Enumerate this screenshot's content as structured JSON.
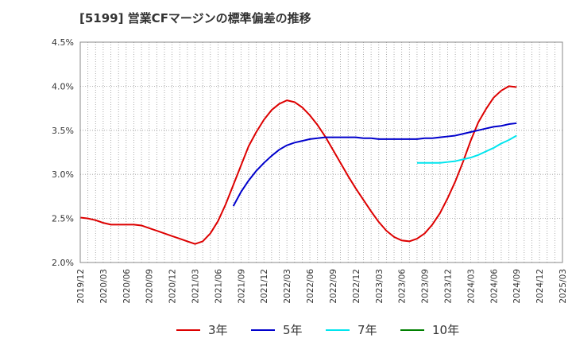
{
  "title": "[5199]  営業CFマージンの標準偏差の推移",
  "chart_data": {
    "type": "line",
    "title": "[5199]  営業CFマージンの標準偏差の推移",
    "xlabel": "",
    "ylabel": "",
    "ylim": [
      2.0,
      4.5
    ],
    "y_ticks": [
      "2.0%",
      "2.5%",
      "3.0%",
      "3.5%",
      "4.0%",
      "4.5%"
    ],
    "y_tick_values": [
      2.0,
      2.5,
      3.0,
      3.5,
      4.0,
      4.5
    ],
    "x_ticks": [
      "2019/12",
      "2020/03",
      "2020/06",
      "2020/09",
      "2020/12",
      "2021/03",
      "2021/06",
      "2021/09",
      "2021/12",
      "2022/03",
      "2022/06",
      "2022/09",
      "2022/12",
      "2023/03",
      "2023/06",
      "2023/09",
      "2023/12",
      "2024/03",
      "2024/06",
      "2024/09",
      "2024/12",
      "2025/03"
    ],
    "grid": true,
    "legend_position": "bottom",
    "series": [
      {
        "name": "3年",
        "color": "#dd0000",
        "points": [
          [
            "2019/12",
            2.51
          ],
          [
            "2020/01",
            2.5
          ],
          [
            "2020/02",
            2.48
          ],
          [
            "2020/03",
            2.45
          ],
          [
            "2020/04",
            2.43
          ],
          [
            "2020/05",
            2.43
          ],
          [
            "2020/06",
            2.43
          ],
          [
            "2020/07",
            2.43
          ],
          [
            "2020/08",
            2.42
          ],
          [
            "2020/09",
            2.39
          ],
          [
            "2020/10",
            2.36
          ],
          [
            "2020/11",
            2.33
          ],
          [
            "2020/12",
            2.3
          ],
          [
            "2021/01",
            2.27
          ],
          [
            "2021/02",
            2.24
          ],
          [
            "2021/03",
            2.21
          ],
          [
            "2021/04",
            2.24
          ],
          [
            "2021/05",
            2.33
          ],
          [
            "2021/06",
            2.47
          ],
          [
            "2021/07",
            2.66
          ],
          [
            "2021/08",
            2.88
          ],
          [
            "2021/09",
            3.1
          ],
          [
            "2021/10",
            3.32
          ],
          [
            "2021/11",
            3.48
          ],
          [
            "2021/12",
            3.62
          ],
          [
            "2022/01",
            3.73
          ],
          [
            "2022/02",
            3.8
          ],
          [
            "2022/03",
            3.84
          ],
          [
            "2022/04",
            3.82
          ],
          [
            "2022/05",
            3.76
          ],
          [
            "2022/06",
            3.67
          ],
          [
            "2022/07",
            3.56
          ],
          [
            "2022/08",
            3.43
          ],
          [
            "2022/09",
            3.28
          ],
          [
            "2022/10",
            3.13
          ],
          [
            "2022/11",
            2.98
          ],
          [
            "2022/12",
            2.84
          ],
          [
            "2023/01",
            2.71
          ],
          [
            "2023/02",
            2.58
          ],
          [
            "2023/03",
            2.46
          ],
          [
            "2023/04",
            2.36
          ],
          [
            "2023/05",
            2.29
          ],
          [
            "2023/06",
            2.25
          ],
          [
            "2023/07",
            2.24
          ],
          [
            "2023/08",
            2.27
          ],
          [
            "2023/09",
            2.33
          ],
          [
            "2023/10",
            2.43
          ],
          [
            "2023/11",
            2.56
          ],
          [
            "2023/12",
            2.73
          ],
          [
            "2024/01",
            2.92
          ],
          [
            "2024/02",
            3.14
          ],
          [
            "2024/03",
            3.38
          ],
          [
            "2024/04",
            3.59
          ],
          [
            "2024/05",
            3.74
          ],
          [
            "2024/06",
            3.87
          ],
          [
            "2024/07",
            3.95
          ],
          [
            "2024/08",
            4.0
          ],
          [
            "2024/09",
            3.99
          ]
        ]
      },
      {
        "name": "5年",
        "color": "#0000cc",
        "points": [
          [
            "2021/08",
            2.64
          ],
          [
            "2021/09",
            2.8
          ],
          [
            "2021/10",
            2.93
          ],
          [
            "2021/11",
            3.04
          ],
          [
            "2021/12",
            3.13
          ],
          [
            "2022/01",
            3.21
          ],
          [
            "2022/02",
            3.28
          ],
          [
            "2022/03",
            3.33
          ],
          [
            "2022/04",
            3.36
          ],
          [
            "2022/05",
            3.38
          ],
          [
            "2022/06",
            3.4
          ],
          [
            "2022/07",
            3.41
          ],
          [
            "2022/08",
            3.42
          ],
          [
            "2022/09",
            3.42
          ],
          [
            "2022/10",
            3.42
          ],
          [
            "2022/11",
            3.42
          ],
          [
            "2022/12",
            3.42
          ],
          [
            "2023/01",
            3.41
          ],
          [
            "2023/02",
            3.41
          ],
          [
            "2023/03",
            3.4
          ],
          [
            "2023/04",
            3.4
          ],
          [
            "2023/05",
            3.4
          ],
          [
            "2023/06",
            3.4
          ],
          [
            "2023/07",
            3.4
          ],
          [
            "2023/08",
            3.4
          ],
          [
            "2023/09",
            3.41
          ],
          [
            "2023/10",
            3.41
          ],
          [
            "2023/11",
            3.42
          ],
          [
            "2023/12",
            3.43
          ],
          [
            "2024/01",
            3.44
          ],
          [
            "2024/02",
            3.46
          ],
          [
            "2024/03",
            3.48
          ],
          [
            "2024/04",
            3.5
          ],
          [
            "2024/05",
            3.52
          ],
          [
            "2024/06",
            3.54
          ],
          [
            "2024/07",
            3.55
          ],
          [
            "2024/08",
            3.57
          ],
          [
            "2024/09",
            3.58
          ]
        ]
      },
      {
        "name": "7年",
        "color": "#00e5ee",
        "points": [
          [
            "2023/08",
            3.13
          ],
          [
            "2023/09",
            3.13
          ],
          [
            "2023/10",
            3.13
          ],
          [
            "2023/11",
            3.13
          ],
          [
            "2023/12",
            3.14
          ],
          [
            "2024/01",
            3.15
          ],
          [
            "2024/02",
            3.17
          ],
          [
            "2024/03",
            3.19
          ],
          [
            "2024/04",
            3.22
          ],
          [
            "2024/05",
            3.26
          ],
          [
            "2024/06",
            3.3
          ],
          [
            "2024/07",
            3.35
          ],
          [
            "2024/08",
            3.39
          ],
          [
            "2024/09",
            3.44
          ]
        ]
      },
      {
        "name": "10年",
        "color": "#008000",
        "points": []
      }
    ]
  }
}
